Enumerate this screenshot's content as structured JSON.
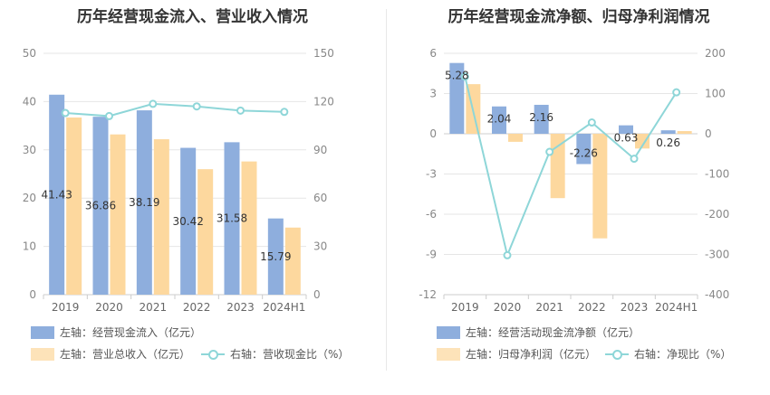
{
  "colors": {
    "blue": "#8eaedd",
    "orange": "#fdd89e",
    "teal": "#8ed6d8"
  },
  "chart_data": [
    {
      "type": "bar",
      "title": "历年经营现金流入、营业收入情况",
      "categories": [
        "2019",
        "2020",
        "2021",
        "2022",
        "2023",
        "2024H1"
      ],
      "y_left": {
        "min": 0,
        "max": 50,
        "ticks": [
          0,
          10,
          20,
          30,
          40,
          50
        ]
      },
      "y_right": {
        "min": 0,
        "max": 150,
        "ticks": [
          0,
          30,
          60,
          90,
          120,
          150
        ]
      },
      "series": [
        {
          "name": "左轴：经营现金流入（亿元）",
          "type": "bar",
          "axis": "left",
          "color": "#8eaedd",
          "values": [
            41.43,
            36.86,
            38.19,
            30.42,
            31.58,
            15.79
          ],
          "labels": [
            "41.43",
            "36.86",
            "38.19",
            "30.42",
            "31.58",
            "15.79"
          ]
        },
        {
          "name": "左轴：营业总收入（亿元）",
          "type": "bar",
          "axis": "left",
          "color": "#fdd89e",
          "values": [
            36.7,
            33.2,
            32.2,
            26.0,
            27.6,
            13.9
          ]
        },
        {
          "name": "右轴：营收现金比（%）",
          "type": "line",
          "axis": "right",
          "color": "#8ed6d8",
          "values": [
            112.9,
            111.0,
            118.6,
            117.0,
            114.4,
            113.6
          ]
        }
      ]
    },
    {
      "type": "bar",
      "title": "历年经营现金流净额、归母净利润情况",
      "categories": [
        "2019",
        "2020",
        "2021",
        "2022",
        "2023",
        "2024H1"
      ],
      "y_left": {
        "min": -12,
        "max": 6,
        "ticks": [
          -12,
          -9,
          -6,
          -3,
          0,
          3,
          6
        ]
      },
      "y_right": {
        "min": -400,
        "max": 200,
        "ticks": [
          -400,
          -300,
          -200,
          -100,
          0,
          100,
          200
        ]
      },
      "series": [
        {
          "name": "左轴：经营活动现金流净额（亿元）",
          "type": "bar",
          "axis": "left",
          "color": "#8eaedd",
          "values": [
            5.28,
            2.04,
            2.16,
            -2.26,
            0.63,
            0.26
          ],
          "labels": [
            "5.28",
            "2.04",
            "2.16",
            "-2.26",
            "0.63",
            "0.26"
          ]
        },
        {
          "name": "左轴：归母净利润（亿元）",
          "type": "bar",
          "axis": "left",
          "color": "#fdd89e",
          "values": [
            3.7,
            -0.6,
            -4.8,
            -7.8,
            -1.1,
            0.2
          ]
        },
        {
          "name": "右轴：净现比（%）",
          "type": "line",
          "axis": "right",
          "color": "#8ed6d8",
          "values": [
            142,
            -302,
            -45,
            28,
            -62,
            103
          ]
        }
      ]
    }
  ]
}
